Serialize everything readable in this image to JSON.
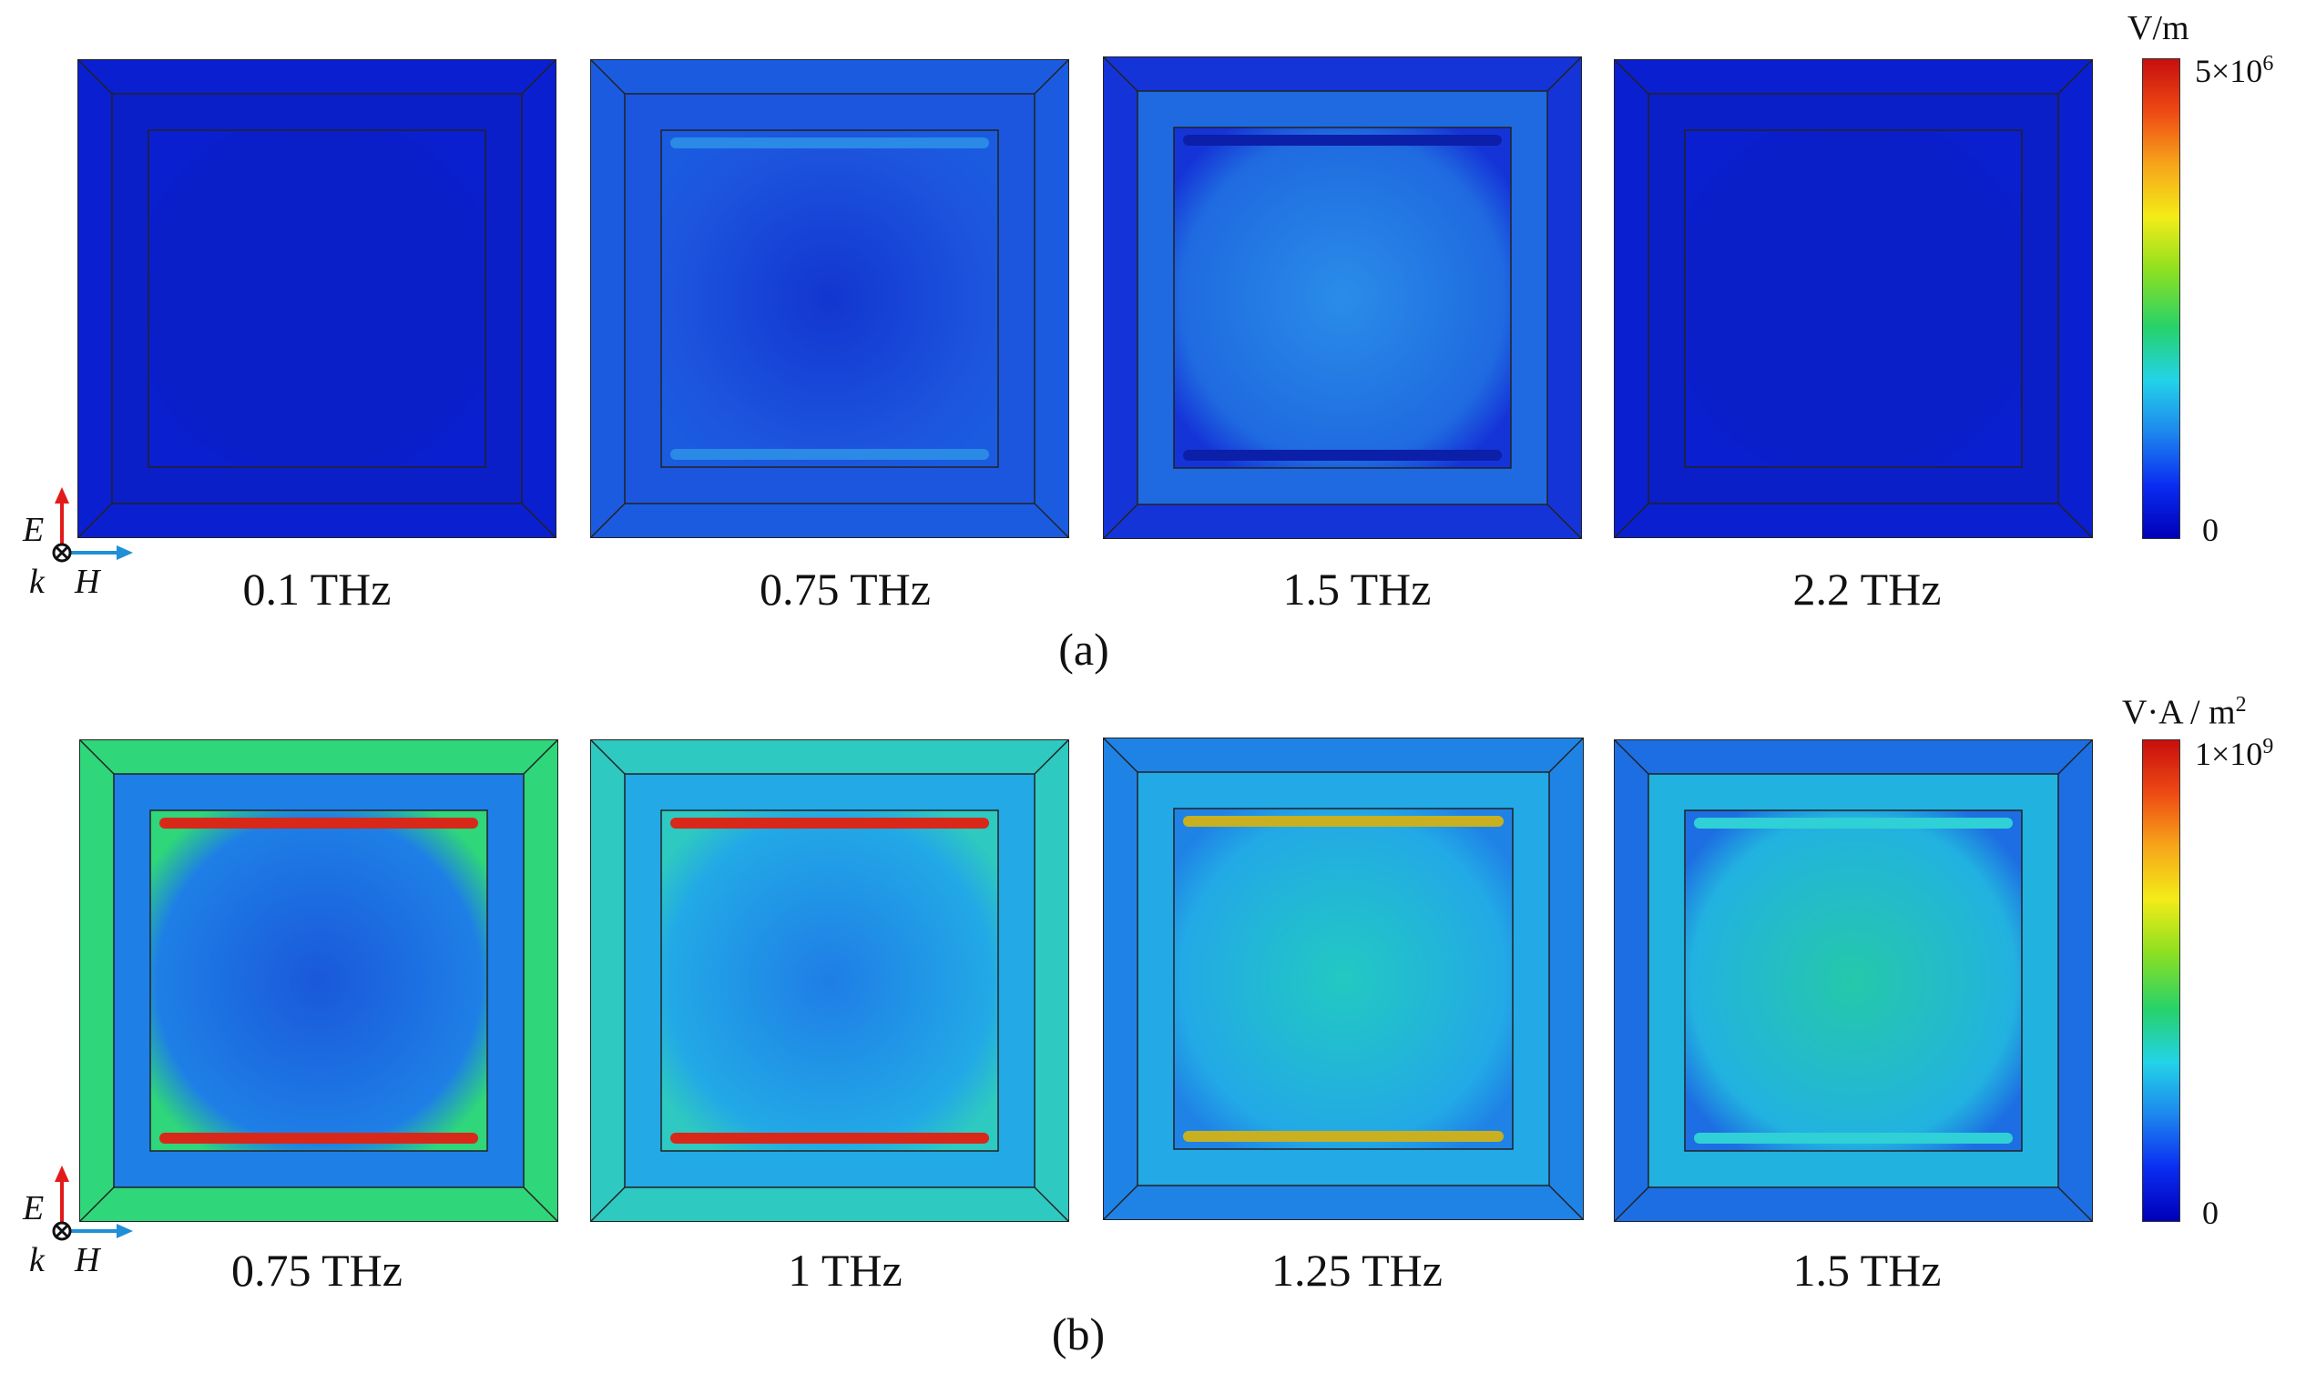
{
  "figure": {
    "row_a": {
      "caption": "(a)",
      "colorbar": {
        "unit_main": "V/m",
        "max_mantissa": "5×10",
        "max_exp": "6",
        "min_label": "0",
        "colors": [
          "#0000b8",
          "#0a2cf2",
          "#1d86ee",
          "#23d3e8",
          "#26d26a",
          "#8ee020",
          "#f3ec18",
          "#f7a51a",
          "#ee4a14",
          "#c80e0e"
        ]
      },
      "panels": [
        {
          "freq": "0.1 THz",
          "bg": "#0a1fd0",
          "inner": "#0a1fc8",
          "mid": "#0a1fc8",
          "edge": "#0a1fd0"
        },
        {
          "freq": "0.75 THz",
          "bg": "#1a5be0",
          "inner": "#1236d0",
          "mid": "#1d56de",
          "edge": "#2a8ae6"
        },
        {
          "freq": "1.5 THz",
          "bg": "#1534d8",
          "inner": "#2a8de8",
          "mid": "#1f6ae0",
          "edge": "#0b1fa8"
        },
        {
          "freq": "2.2 THz",
          "bg": "#0a1fd0",
          "inner": "#0a1fc8",
          "mid": "#0a1fc8",
          "edge": "#0a1fd0"
        }
      ]
    },
    "row_b": {
      "caption": "(b)",
      "colorbar": {
        "unit_main": "V·A / m",
        "unit_exp": "2",
        "max_mantissa": "1×10",
        "max_exp": "9",
        "min_label": "0",
        "colors": [
          "#0000b8",
          "#0a2cf2",
          "#1d86ee",
          "#23d3e8",
          "#26d26a",
          "#8ee020",
          "#f3ec18",
          "#f7a51a",
          "#ee4a14",
          "#c80e0e"
        ]
      },
      "panels": [
        {
          "freq": "0.75 THz",
          "bg": "#2fd67a",
          "inner": "#1a58da",
          "mid": "#1e7fe6",
          "edge": "#d8281a"
        },
        {
          "freq": "1 THz",
          "bg": "#2ec9c0",
          "inner": "#1f7de6",
          "mid": "#22a9e6",
          "edge": "#d8281a"
        },
        {
          "freq": "1.25 THz",
          "bg": "#1f83e6",
          "inner": "#22c9c2",
          "mid": "#22a9e6",
          "edge": "#c8b020"
        },
        {
          "freq": "1.5 THz",
          "bg": "#1d6ee2",
          "inner": "#25c8aa",
          "mid": "#22b2e0",
          "edge": "#2fd0d6"
        }
      ]
    },
    "axis": {
      "e": "E",
      "k": "k",
      "h": "H"
    }
  }
}
